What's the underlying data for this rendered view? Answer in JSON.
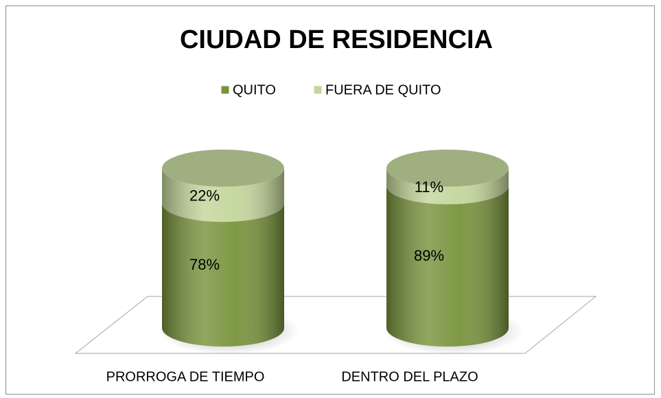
{
  "chart_data": {
    "type": "bar3d_stacked",
    "title": "CIUDAD DE RESIDENCIA",
    "categories": [
      "PRORROGA DE TIEMPO",
      "DENTRO DEL PLAZO"
    ],
    "series": [
      {
        "name": "QUITO",
        "color": "#77933c",
        "values": [
          78,
          89
        ],
        "value_labels": [
          "78%",
          "89%"
        ]
      },
      {
        "name": "FUERA DE QUITO",
        "color": "#c3d69b",
        "values": [
          22,
          11
        ],
        "value_labels": [
          "22%",
          "11%"
        ]
      }
    ],
    "legend": "top"
  }
}
